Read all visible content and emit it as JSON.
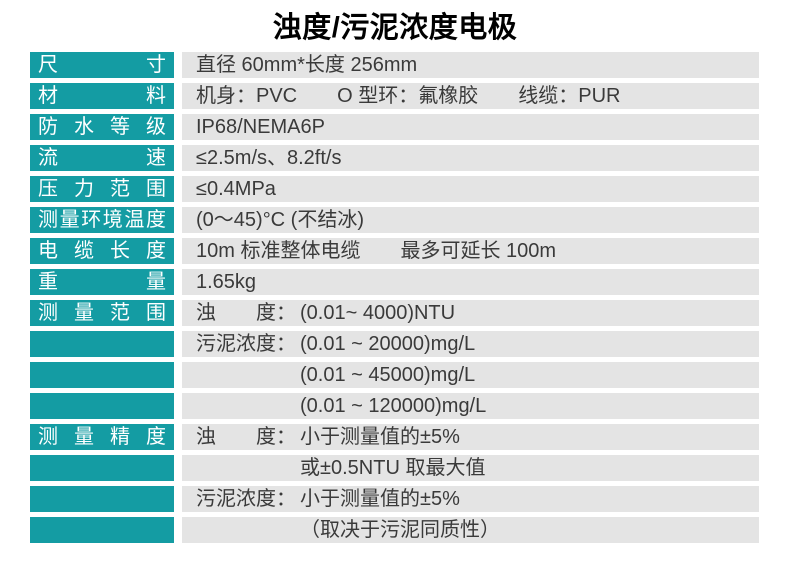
{
  "title": "浊度/污泥浓度电极",
  "colors": {
    "accent": "#149CA3",
    "row_bg": "#E4E4E4",
    "label_text": "#FFFFFF",
    "value_text": "#3A3A3A",
    "title_color": "#000000"
  },
  "table": {
    "rows": [
      {
        "label": "尺寸",
        "prefix": "",
        "text": "直径 60mm*长度 256mm",
        "hang": false
      },
      {
        "label": "材料",
        "prefix": "",
        "text": "机身：PVC　　O 型环：氟橡胶　　线缆：PUR",
        "hang": false
      },
      {
        "label": "防水等级",
        "prefix": "",
        "text": "IP68/NEMA6P",
        "hang": false
      },
      {
        "label": "流速",
        "prefix": "",
        "text": "≤2.5m/s、8.2ft/s",
        "hang": false
      },
      {
        "label": "压力范围",
        "prefix": "",
        "text": "≤0.4MPa",
        "hang": false
      },
      {
        "label": "测量环境温度",
        "prefix": "",
        "text": "(0～45)°C (不结冰)",
        "hang": false
      },
      {
        "label": "电缆长度",
        "prefix": "",
        "text": "10m 标准整体电缆　　最多可延长 100m",
        "hang": false
      },
      {
        "label": "重量",
        "prefix": "",
        "text": "1.65kg",
        "hang": false
      },
      {
        "label": "测量范围",
        "prefix": "浊　　度：",
        "text": "(0.01~ 4000)NTU",
        "hang": true
      },
      {
        "label": "",
        "prefix": "污泥浓度：",
        "text": "(0.01 ~ 20000)mg/L",
        "hang": true
      },
      {
        "label": "",
        "prefix": "",
        "text": "(0.01 ~ 45000)mg/L",
        "hang": true
      },
      {
        "label": "",
        "prefix": "",
        "text": "(0.01 ~ 120000)mg/L",
        "hang": true
      },
      {
        "label": "测量精度",
        "prefix": "浊　　度：",
        "text": "小于测量值的±5%",
        "hang": true
      },
      {
        "label": "",
        "prefix": "",
        "text": "或±0.5NTU 取最大值",
        "hang": true
      },
      {
        "label": "",
        "prefix": "污泥浓度：",
        "text": "小于测量值的±5%",
        "hang": true
      },
      {
        "label": "",
        "prefix": "",
        "text": "（取决于污泥同质性）",
        "hang": true
      }
    ]
  }
}
